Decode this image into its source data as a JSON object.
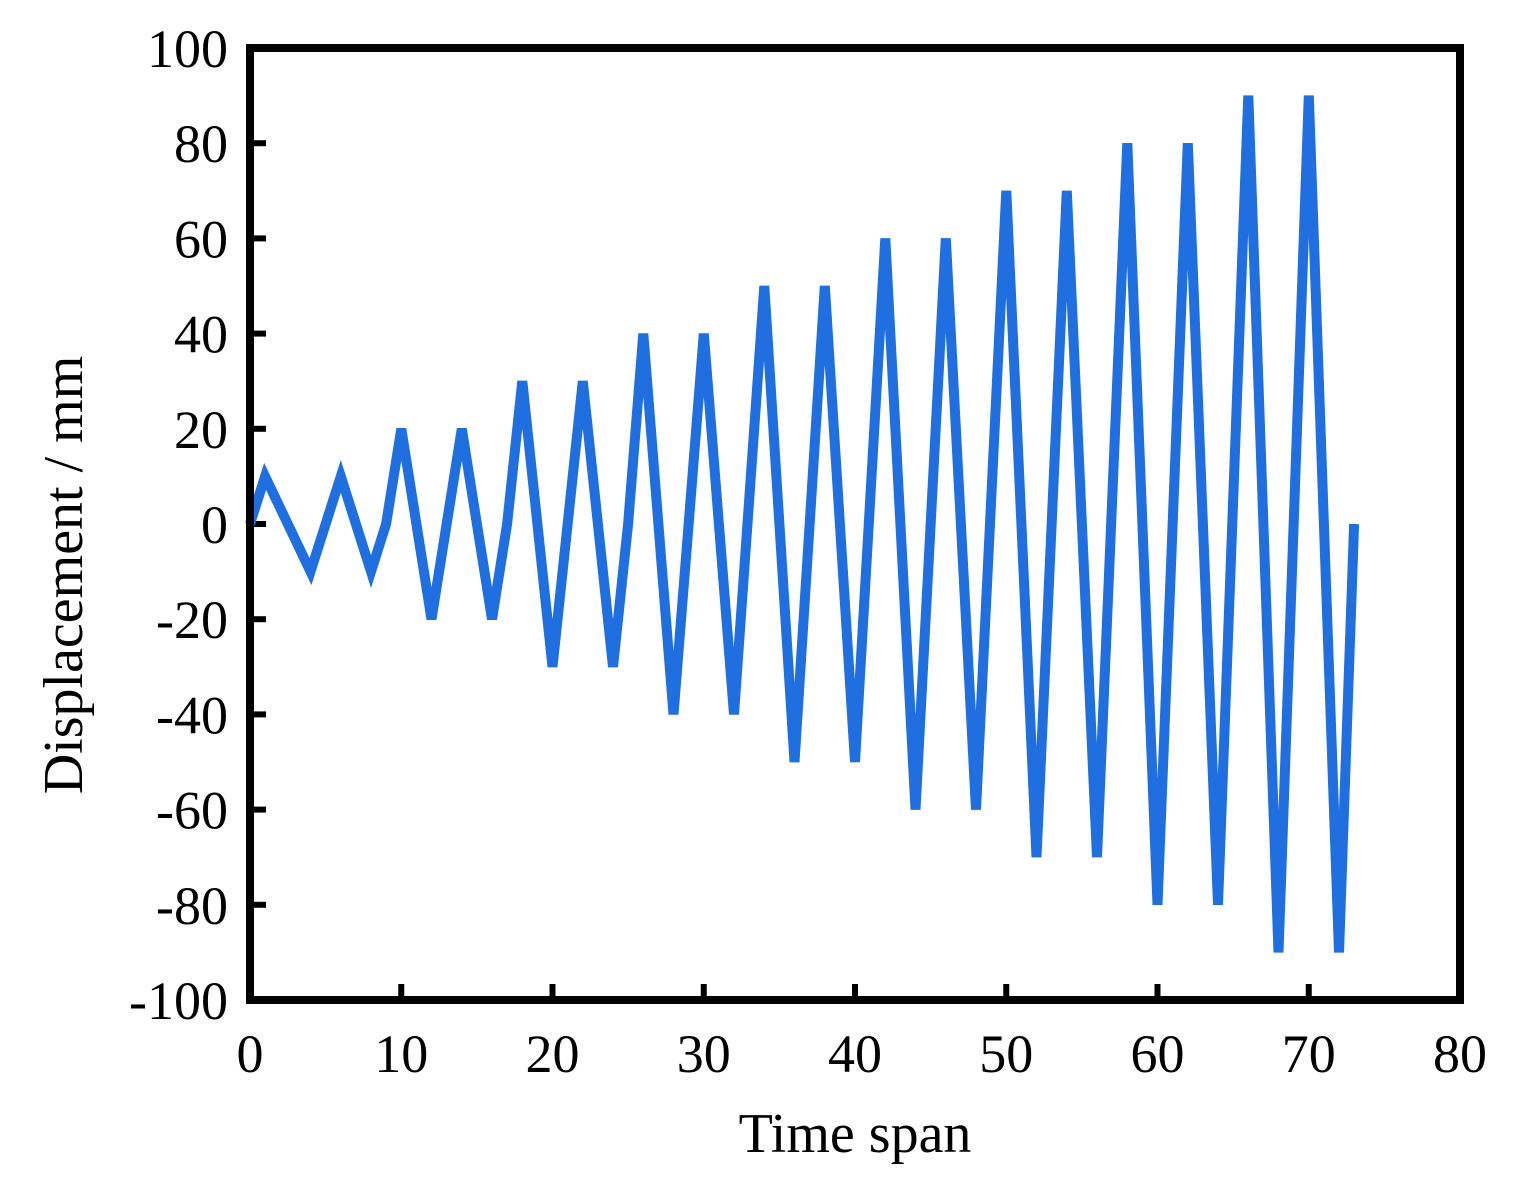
{
  "chart_data": {
    "type": "line",
    "title": "",
    "xlabel": "Time span",
    "ylabel": "Displacement / mm",
    "xlim": [
      0,
      80
    ],
    "ylim": [
      -100,
      100
    ],
    "xticks": [
      0,
      10,
      20,
      30,
      40,
      50,
      60,
      70,
      80
    ],
    "yticks": [
      100,
      80,
      60,
      40,
      20,
      0,
      -20,
      -40,
      -60,
      -80,
      -100
    ],
    "xtick_labels": [
      "0",
      "10",
      "20",
      "30",
      "40",
      "50",
      "60",
      "70",
      "80"
    ],
    "ytick_labels": [
      "100",
      "80",
      "60",
      "40",
      "20",
      "0",
      "-20",
      "-40",
      "-60",
      "-80",
      "-100"
    ],
    "grid": false,
    "series": [
      {
        "name": "Displacement",
        "color": "#1f6fe0",
        "x": [
          0,
          1,
          4,
          6,
          8,
          9,
          10,
          12,
          14,
          16,
          17,
          18,
          20,
          22,
          24,
          25,
          26,
          28,
          30,
          32,
          34,
          36,
          38,
          40,
          42,
          44,
          46,
          48,
          50,
          52,
          54,
          56,
          58,
          60,
          62,
          64,
          66,
          68,
          70,
          72,
          73
        ],
        "y": [
          0,
          10,
          -10,
          10,
          -10,
          0,
          20,
          -20,
          20,
          -20,
          0,
          30,
          -30,
          30,
          -30,
          0,
          40,
          -40,
          40,
          -40,
          50,
          -50,
          50,
          -50,
          60,
          -60,
          60,
          -60,
          70,
          -70,
          70,
          -70,
          80,
          -80,
          80,
          -80,
          90,
          -90,
          90,
          -90,
          0
        ]
      }
    ]
  }
}
